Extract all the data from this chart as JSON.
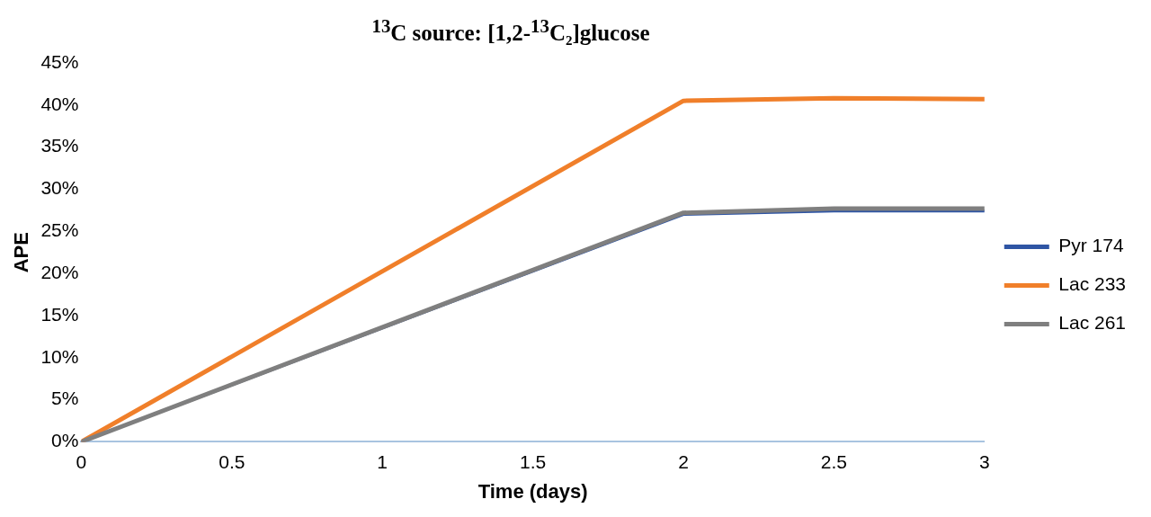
{
  "chart_data": {
    "type": "line",
    "title": "$^{13}$C source: [1,2-$^{13}$C₂]glucose",
    "xlabel": "Time (days)",
    "ylabel": "APE",
    "x": [
      0,
      2,
      2.5,
      3
    ],
    "series": [
      {
        "name": "Pyr 174",
        "color": "#2f55a4",
        "values": [
          0,
          27.0,
          27.4,
          27.4
        ]
      },
      {
        "name": "Lac 233",
        "color": "#f07f2a",
        "values": [
          0,
          40.5,
          40.8,
          40.7
        ]
      },
      {
        "name": "Lac 261",
        "color": "#7f7f7f",
        "values": [
          0,
          27.2,
          27.7,
          27.7
        ]
      }
    ],
    "xlim": [
      0,
      3
    ],
    "xticks": [
      0,
      0.5,
      1,
      1.5,
      2,
      2.5,
      3
    ],
    "ylim": [
      0,
      45
    ],
    "yticks": [
      {
        "value": 0,
        "label": "0%"
      },
      {
        "value": 5,
        "label": "5%"
      },
      {
        "value": 10,
        "label": "10%"
      },
      {
        "value": 15,
        "label": "15%"
      },
      {
        "value": 20,
        "label": "20%"
      },
      {
        "value": 25,
        "label": "25%"
      },
      {
        "value": 30,
        "label": "30%"
      },
      {
        "value": 35,
        "label": "35%"
      },
      {
        "value": 40,
        "label": "40%"
      },
      {
        "value": 45,
        "label": "45%"
      }
    ],
    "grid": false,
    "legend": "right",
    "marker": "none",
    "line_style": "solid"
  }
}
